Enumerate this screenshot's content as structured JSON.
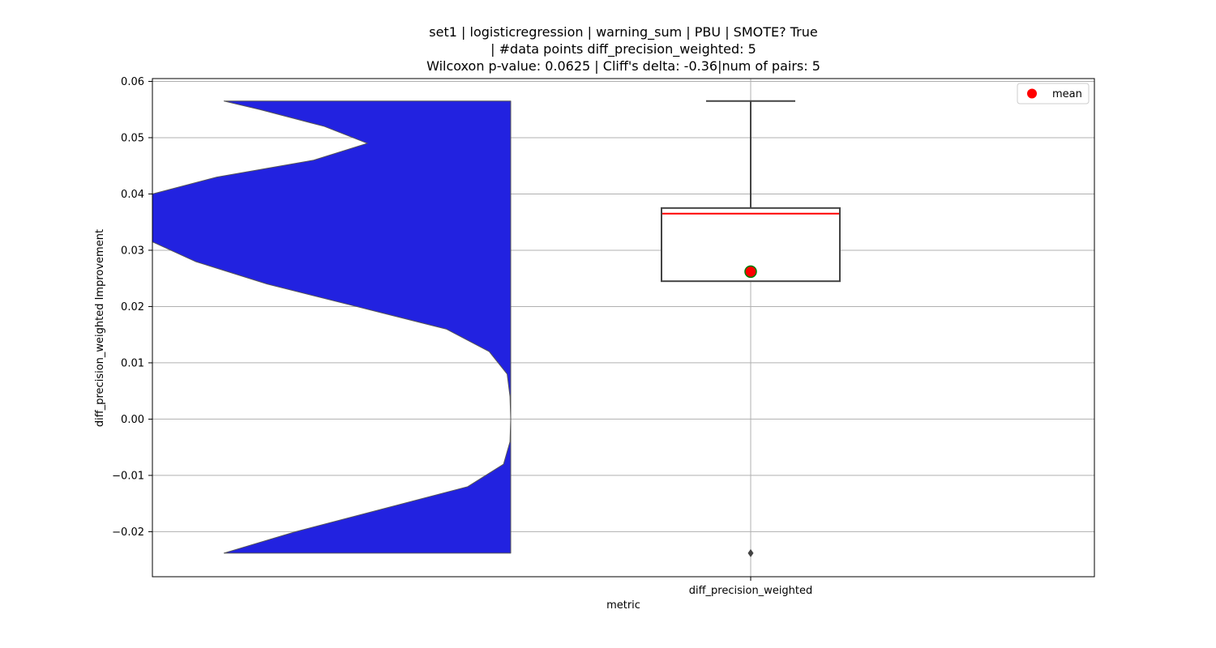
{
  "chart_data": {
    "type": "violin+box",
    "title_lines": [
      "set1 | logisticregression | warning_sum | PBU | SMOTE? True",
      "| #data points diff_precision_weighted: 5",
      "Wilcoxon p-value: 0.0625 | Cliff's delta: -0.36|num of pairs: 5"
    ],
    "xlabel": "metric",
    "ylabel": "diff_precision_weighted Improvement",
    "categories": [
      "diff_precision_weighted"
    ],
    "ylim": [
      -0.028,
      0.0605
    ],
    "yticks": [
      -0.02,
      -0.01,
      0.0,
      0.01,
      0.02,
      0.03,
      0.04,
      0.05,
      0.06
    ],
    "ytick_labels": [
      "−0.02",
      "−0.01",
      "0.00",
      "0.01",
      "0.02",
      "0.03",
      "0.04",
      "0.05",
      "0.06"
    ],
    "grid": true,
    "legend": {
      "placement": "top-right",
      "entries": [
        {
          "label": "mean",
          "color": "#ff0000"
        }
      ]
    },
    "violin": {
      "color": "#2222e0",
      "side": "left",
      "range": [
        -0.0238,
        0.0565
      ],
      "density": [
        [
          -0.0238,
          0.8
        ],
        [
          -0.02,
          0.6
        ],
        [
          -0.016,
          0.36
        ],
        [
          -0.012,
          0.12
        ],
        [
          -0.008,
          0.02
        ],
        [
          -0.004,
          0.002
        ],
        [
          0.0,
          0.0
        ],
        [
          0.004,
          0.002
        ],
        [
          0.008,
          0.01
        ],
        [
          0.012,
          0.06
        ],
        [
          0.016,
          0.18
        ],
        [
          0.02,
          0.43
        ],
        [
          0.024,
          0.68
        ],
        [
          0.028,
          0.88
        ],
        [
          0.0315,
          1.0
        ],
        [
          0.036,
          1.0
        ],
        [
          0.04,
          1.0
        ],
        [
          0.043,
          0.82
        ],
        [
          0.046,
          0.55
        ],
        [
          0.049,
          0.4
        ],
        [
          0.052,
          0.52
        ],
        [
          0.055,
          0.7
        ],
        [
          0.0565,
          0.8
        ]
      ]
    },
    "box": {
      "q1": 0.0245,
      "median": 0.0365,
      "q3": 0.0375,
      "whisker_low": 0.0245,
      "whisker_high": 0.0565,
      "mean": 0.0262,
      "outliers": [
        -0.0238
      ],
      "median_color": "#ff0000",
      "mean_color": "#ff0000",
      "mean_edge_color": "#008000"
    }
  }
}
